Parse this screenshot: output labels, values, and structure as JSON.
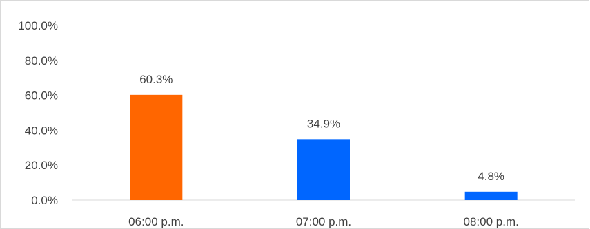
{
  "chart_data": {
    "type": "bar",
    "categories": [
      "06:00 p.m.",
      "07:00 p.m.",
      "08:00 p.m."
    ],
    "values": [
      60.3,
      34.9,
      4.8
    ],
    "data_labels": [
      "60.3%",
      "34.9%",
      "4.8%"
    ],
    "bar_colors": [
      "#FF6600",
      "#0066FF",
      "#0066FF"
    ],
    "ylim": [
      0,
      100
    ],
    "yticks": [
      0,
      20,
      40,
      60,
      80,
      100
    ],
    "ytick_labels": [
      "0.0%",
      "20.0%",
      "40.0%",
      "60.0%",
      "80.0%",
      "100.0%"
    ],
    "grid": false,
    "legend": "none",
    "title": "",
    "xlabel": "",
    "ylabel": ""
  }
}
